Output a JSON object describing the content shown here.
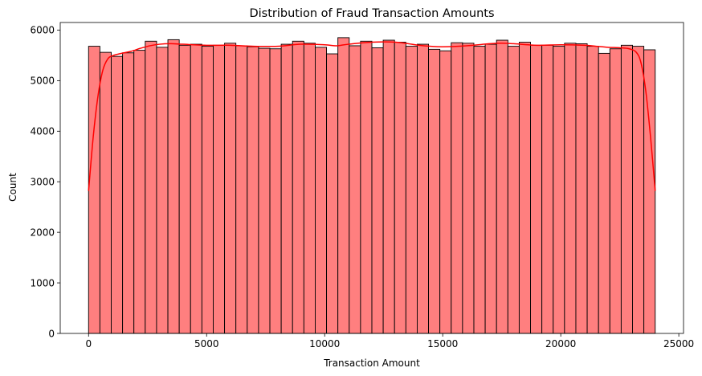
{
  "chart_data": {
    "type": "histogram",
    "title": "Distribution of Fraud Transaction Amounts",
    "xlabel": "Transaction Amount",
    "ylabel": "Count",
    "xlim": [
      -1200,
      25200
    ],
    "ylim": [
      0,
      6150
    ],
    "xticks": [
      0,
      5000,
      10000,
      15000,
      20000,
      25000
    ],
    "yticks": [
      0,
      1000,
      2000,
      3000,
      4000,
      5000,
      6000
    ],
    "bin_start": 0,
    "bin_end": 24000,
    "bin_count": 50,
    "values": [
      5680,
      5560,
      5480,
      5550,
      5600,
      5780,
      5660,
      5810,
      5700,
      5720,
      5680,
      5700,
      5740,
      5690,
      5670,
      5640,
      5630,
      5720,
      5780,
      5740,
      5660,
      5530,
      5850,
      5690,
      5780,
      5650,
      5800,
      5760,
      5680,
      5720,
      5620,
      5590,
      5750,
      5740,
      5680,
      5720,
      5800,
      5680,
      5760,
      5700,
      5700,
      5680,
      5740,
      5730,
      5680,
      5540,
      5630,
      5700,
      5680,
      5610
    ],
    "kde": {
      "x": [
        0,
        200,
        400,
        600,
        800,
        1000,
        1400,
        1800,
        2200,
        2600,
        3000,
        3500,
        4000,
        5000,
        6000,
        7000,
        8000,
        9000,
        10000,
        10500,
        11000,
        12000,
        13000,
        14000,
        14500,
        15000,
        16000,
        17000,
        17500,
        18000,
        19000,
        20000,
        21000,
        21500,
        22000,
        22500,
        22900,
        23200,
        23400,
        23600,
        23800,
        24000
      ],
      "y": [
        2820,
        3900,
        4700,
        5200,
        5420,
        5490,
        5540,
        5580,
        5640,
        5690,
        5720,
        5730,
        5720,
        5700,
        5700,
        5680,
        5680,
        5720,
        5710,
        5690,
        5720,
        5760,
        5760,
        5700,
        5680,
        5670,
        5690,
        5730,
        5740,
        5730,
        5700,
        5710,
        5700,
        5680,
        5660,
        5650,
        5630,
        5560,
        5350,
        4800,
        3900,
        2820
      ]
    },
    "bar_fill": "#ff7f7f",
    "bar_edge": "#000000",
    "kde_color": "#ff0000",
    "grid": false
  }
}
